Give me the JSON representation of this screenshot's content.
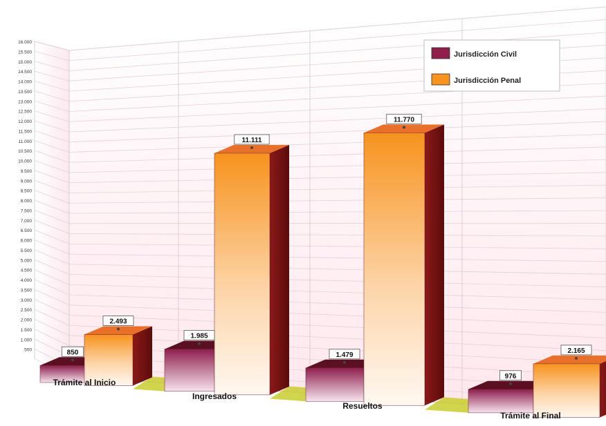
{
  "chart_data": {
    "type": "bar",
    "categories": [
      "Trámite al Inicio",
      "Ingresados",
      "Resueltos",
      "Trámite al Final"
    ],
    "series": [
      {
        "name": "Jurisdicción Civil",
        "values": [
          850,
          1985,
          1479,
          976
        ],
        "labels": [
          "850",
          "1.985",
          "1.479",
          "976"
        ],
        "color": "#8e1f4d"
      },
      {
        "name": "Jurisdicción Penal",
        "values": [
          2493,
          11111,
          11770,
          2165
        ],
        "labels": [
          "2.493",
          "11.111",
          "11.770",
          "2.165"
        ],
        "color": "#f7931e"
      }
    ],
    "y_ticks": [
      "500",
      "1.000",
      "1.500",
      "2.000",
      "2.500",
      "3.000",
      "3.500",
      "4.000",
      "4.500",
      "5.000",
      "5.500",
      "6.000",
      "6.500",
      "7.000",
      "7.500",
      "8.000",
      "8.500",
      "9.000",
      "9.500",
      "10.000",
      "10.500",
      "11.000",
      "11.500",
      "12.000",
      "12.500",
      "13.000",
      "13.500",
      "14.000",
      "14.500",
      "15.000",
      "15.500",
      "16.000"
    ],
    "ylim": [
      0,
      16000
    ],
    "grid": true,
    "legend_position": "top-right",
    "style": "3d",
    "colors": {
      "civil_front": "#8e1f4d",
      "civil_side": "#4a0b16",
      "penal_front": "#f7931e",
      "penal_side": "#7a1212",
      "floor": "#c9cc2e"
    }
  }
}
